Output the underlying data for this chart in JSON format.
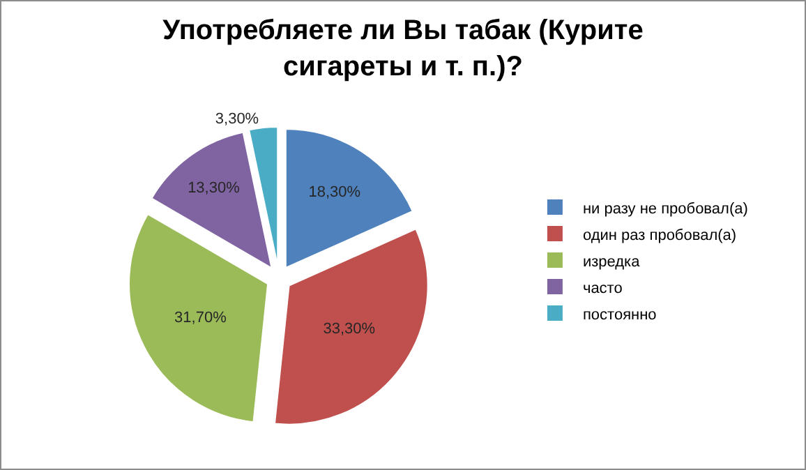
{
  "chart_data": {
    "type": "pie",
    "title": "Употребляете ли Вы табак (Курите сигареты и т. п.)?",
    "categories": [
      "ни разу не пробовал(а)",
      "один раз пробовал(а)",
      "изредка",
      "часто",
      "постоянно"
    ],
    "values": [
      18.3,
      33.3,
      31.7,
      13.3,
      3.3
    ],
    "value_labels": [
      "18,30%",
      "33,30%",
      "31,70%",
      "13,30%",
      "3,30%"
    ],
    "colors": [
      "#4f81bd",
      "#c0504d",
      "#9bbb59",
      "#8064a2",
      "#4bacc6"
    ],
    "legend": "right"
  }
}
